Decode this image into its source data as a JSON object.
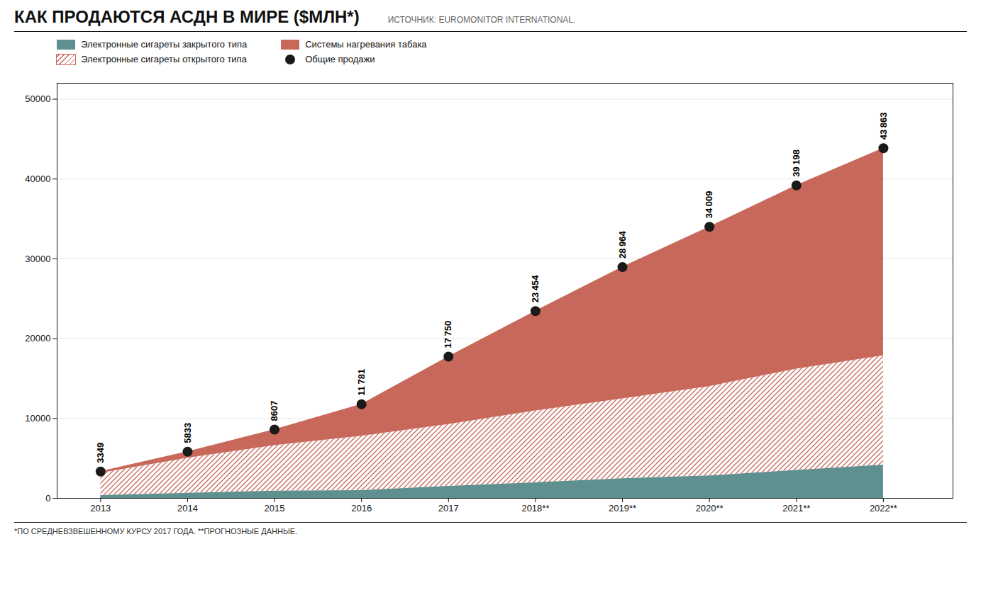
{
  "chart_data": {
    "type": "area",
    "stacked": true,
    "title": "КАК ПРОДАЮТСЯ АСДН В МИРЕ ($МЛН*)",
    "subtitle": "ИСТОЧНИК: EUROMONITOR INTERNATIONAL.",
    "annotations": [
      "*ПО СРЕДНЕВЗВЕШЕННОМУ КУРСУ 2017 ГОДА.   **ПРОГНОЗНЫЕ ДАННЫЕ."
    ],
    "x": [
      2013,
      2014,
      2015,
      2016,
      2017,
      2018,
      2019,
      2020,
      2021,
      2022
    ],
    "xlim": [
      2012.5,
      2022.8
    ],
    "xticks": [
      2013,
      2014,
      2015,
      2016,
      2017,
      {
        "value": 2018,
        "label": "2018**"
      },
      {
        "value": 2019,
        "label": "2019**"
      },
      {
        "value": 2020,
        "label": "2020**"
      },
      {
        "value": 2021,
        "label": "2021**"
      },
      {
        "value": 2022,
        "label": "2022**"
      }
    ],
    "ylim": [
      0,
      52000
    ],
    "yticks": [
      0,
      10000,
      20000,
      30000,
      40000,
      50000
    ],
    "grid": true,
    "legend": "upper left",
    "series": [
      {
        "name": "Электронные сигареты закрытого типа",
        "type": "area",
        "color": "#5f9090",
        "values": [
          349,
          633,
          907,
          981,
          1500,
          1954,
          2464,
          2809,
          3498,
          4163
        ]
      },
      {
        "name": "Электронные сигареты открытого типа",
        "type": "area",
        "color": "#c8685a",
        "line_style": "hatch",
        "values": [
          2800,
          4400,
          5700,
          6800,
          7750,
          9000,
          10000,
          11200,
          12700,
          13700
        ]
      },
      {
        "name": "Системы нагревания табака",
        "type": "area",
        "color": "#c8685a",
        "values": [
          200,
          800,
          2000,
          4000,
          8500,
          12500,
          16500,
          20000,
          23000,
          26000
        ]
      },
      {
        "name": "Общие продажи",
        "type": "scatter",
        "color": "#1a1a1a",
        "marker": "circle",
        "data_labels": true,
        "values": [
          3349,
          5833,
          8607,
          11781,
          17750,
          23454,
          28964,
          34009,
          39198,
          43863
        ],
        "value_labels": [
          "3349",
          "5833",
          "8607",
          "11 781",
          "17 750",
          "23 454",
          "28 964",
          "34 009",
          "39 198",
          "43 863"
        ]
      }
    ]
  }
}
